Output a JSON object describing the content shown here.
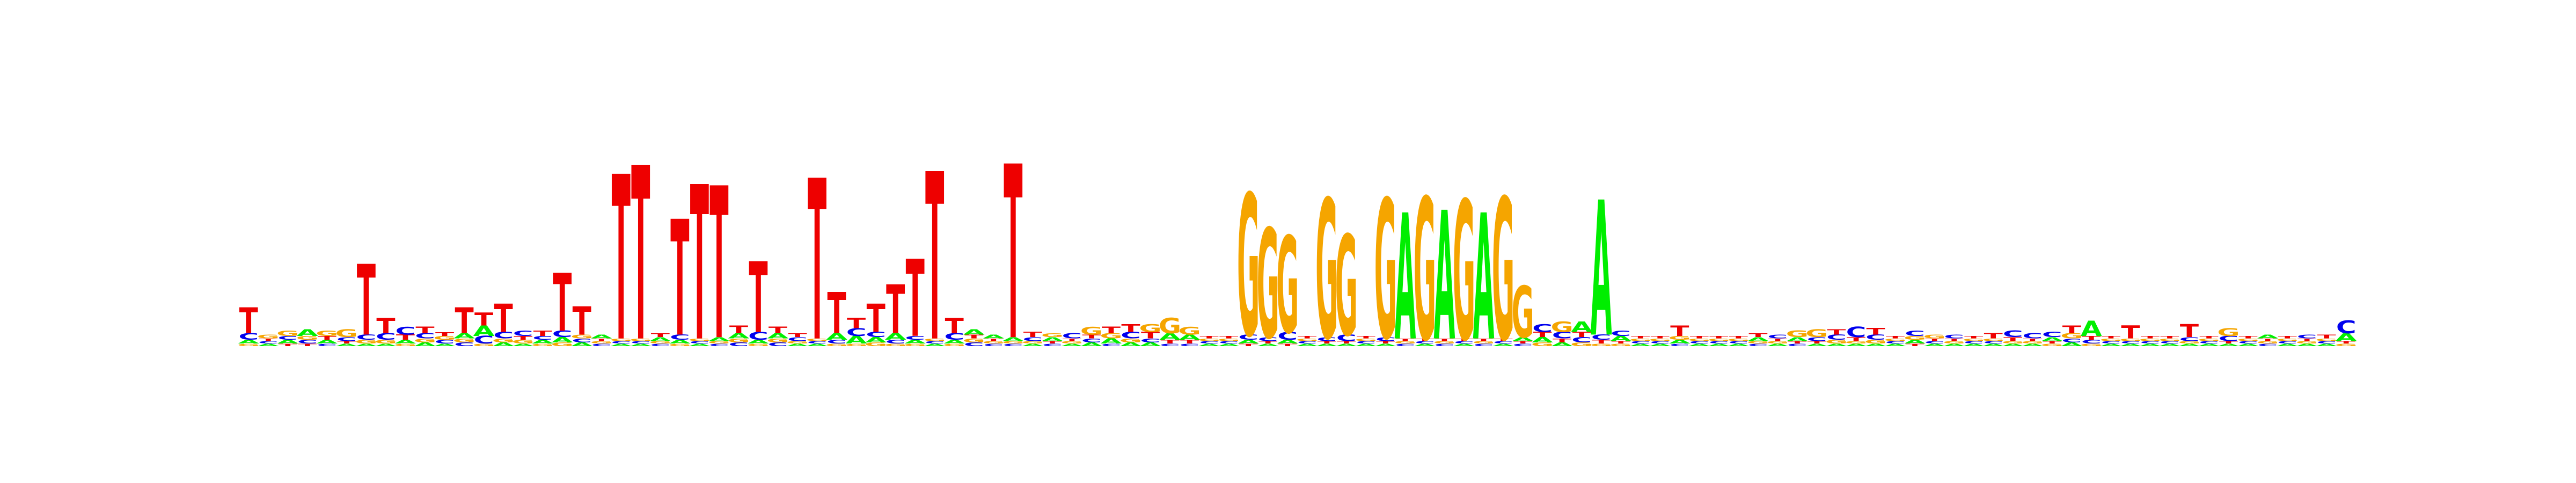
{
  "logo": {
    "alphabet": [
      "A",
      "C",
      "G",
      "T"
    ],
    "colors": {
      "A": "#00ee00",
      "C": "#0000ee",
      "G": "#f5a500",
      "T": "#ee0000"
    },
    "max_bits": 2,
    "columns": [
      {
        "A": 0.03,
        "C": 0.05,
        "G": 0.02,
        "T": 0.2
      },
      {
        "A": 0.02,
        "C": 0.02,
        "G": 0.03,
        "T": 0.02
      },
      {
        "A": 0.03,
        "C": 0.03,
        "G": 0.04,
        "T": 0.02
      },
      {
        "A": 0.05,
        "C": 0.03,
        "G": 0.03,
        "T": 0.02
      },
      {
        "A": 0.03,
        "C": 0.02,
        "G": 0.04,
        "T": 0.03
      },
      {
        "A": 0.02,
        "C": 0.03,
        "G": 0.06,
        "T": 0.02
      },
      {
        "A": 0.02,
        "C": 0.04,
        "G": 0.03,
        "T": 0.55
      },
      {
        "A": 0.02,
        "C": 0.05,
        "G": 0.03,
        "T": 0.12
      },
      {
        "A": 0.03,
        "C": 0.06,
        "G": 0.02,
        "T": 0.04
      },
      {
        "A": 0.03,
        "C": 0.04,
        "G": 0.03,
        "T": 0.05
      },
      {
        "A": 0.02,
        "C": 0.03,
        "G": 0.03,
        "T": 0.03
      },
      {
        "A": 0.04,
        "C": 0.03,
        "G": 0.03,
        "T": 0.2
      },
      {
        "A": 0.08,
        "C": 0.06,
        "G": 0.02,
        "T": 0.1
      },
      {
        "A": 0.03,
        "C": 0.05,
        "G": 0.03,
        "T": 0.22
      },
      {
        "A": 0.02,
        "C": 0.04,
        "G": 0.03,
        "T": 0.03
      },
      {
        "A": 0.03,
        "C": 0.03,
        "G": 0.02,
        "T": 0.04
      },
      {
        "A": 0.04,
        "C": 0.05,
        "G": 0.03,
        "T": 0.45
      },
      {
        "A": 0.03,
        "C": 0.03,
        "G": 0.03,
        "T": 0.22
      },
      {
        "A": 0.03,
        "C": 0.02,
        "G": 0.02,
        "T": 0.02
      },
      {
        "A": 0.02,
        "C": 0.02,
        "G": 0.02,
        "T": 1.28
      },
      {
        "A": 0.02,
        "C": 0.02,
        "G": 0.02,
        "T": 1.35
      },
      {
        "A": 0.03,
        "C": 0.02,
        "G": 0.02,
        "T": 0.03
      },
      {
        "A": 0.03,
        "C": 0.04,
        "G": 0.02,
        "T": 0.9
      },
      {
        "A": 0.02,
        "C": 0.02,
        "G": 0.02,
        "T": 1.2
      },
      {
        "A": 0.03,
        "C": 0.02,
        "G": 0.02,
        "T": 1.18
      },
      {
        "A": 0.04,
        "C": 0.03,
        "G": 0.03,
        "T": 0.06
      },
      {
        "A": 0.03,
        "C": 0.06,
        "G": 0.02,
        "T": 0.55
      },
      {
        "A": 0.04,
        "C": 0.03,
        "G": 0.03,
        "T": 0.05
      },
      {
        "A": 0.02,
        "C": 0.03,
        "G": 0.02,
        "T": 0.03
      },
      {
        "A": 0.02,
        "C": 0.02,
        "G": 0.02,
        "T": 1.25
      },
      {
        "A": 0.05,
        "C": 0.03,
        "G": 0.02,
        "T": 0.32
      },
      {
        "A": 0.06,
        "C": 0.06,
        "G": 0.02,
        "T": 0.08
      },
      {
        "A": 0.04,
        "C": 0.04,
        "G": 0.03,
        "T": 0.22
      },
      {
        "A": 0.05,
        "C": 0.03,
        "G": 0.02,
        "T": 0.38
      },
      {
        "A": 0.03,
        "C": 0.03,
        "G": 0.02,
        "T": 0.6
      },
      {
        "A": 0.02,
        "C": 0.02,
        "G": 0.02,
        "T": 1.3
      },
      {
        "A": 0.03,
        "C": 0.05,
        "G": 0.02,
        "T": 0.12
      },
      {
        "A": 0.04,
        "C": 0.03,
        "G": 0.03,
        "T": 0.03
      },
      {
        "A": 0.03,
        "C": 0.02,
        "G": 0.02,
        "T": 0.02
      },
      {
        "A": 0.03,
        "C": 0.02,
        "G": 0.02,
        "T": 1.35
      },
      {
        "A": 0.02,
        "C": 0.02,
        "G": 0.03,
        "T": 0.02
      },
      {
        "A": 0.04,
        "C": 0.03,
        "G": 0.03,
        "T": 0.03
      },
      {
        "A": 0.03,
        "C": 0.03,
        "G": 0.04,
        "T": 0.03
      },
      {
        "A": 0.05,
        "C": 0.04,
        "G": 0.03,
        "T": 0.06
      },
      {
        "A": 0.03,
        "C": 0.05,
        "G": 0.04,
        "T": 0.03
      },
      {
        "A": 0.04,
        "C": 0.04,
        "G": 0.06,
        "T": 0.03
      },
      {
        "A": 0.02,
        "C": 0.03,
        "G": 0.03,
        "T": 0.05
      },
      {
        "A": 0.03,
        "C": 0.02,
        "G": 0.04,
        "T": 0.02
      },
      {
        "A": 0.02,
        "C": 0.04,
        "G": 0.02,
        "T": 0.03
      },
      {
        "A": 0.02,
        "C": 0.03,
        "G": 0.03,
        "T": 0.02
      },
      {
        "A": 0.03,
        "C": 0.02,
        "G": 0.02,
        "T": 0.03
      },
      {
        "A": 0.02,
        "C": 0.03,
        "G": 0.02,
        "T": 0.02
      },
      {
        "A": 0.03,
        "C": 0.02,
        "G": 0.03,
        "T": 0.02
      },
      {
        "A": 0.02,
        "C": 0.02,
        "G": 0.02,
        "T": 0.03
      },
      {
        "A": 0.03,
        "C": 0.03,
        "G": 0.02,
        "T": 0.02
      },
      {
        "A": 0.02,
        "C": 0.02,
        "G": 0.02,
        "T": 0.02
      },
      {
        "A": 0.02,
        "C": 0.02,
        "G": 0.02,
        "T": 0.02
      },
      {
        "A": 0.02,
        "C": 0.02,
        "G": 0.02,
        "T": 0.02
      },
      {
        "A": 0.02,
        "C": 0.02,
        "G": 0.02,
        "T": 0.02
      },
      {
        "A": 0.02,
        "C": 0.02,
        "G": 0.02,
        "T": 0.02
      },
      {
        "A": 0.02,
        "C": 0.02,
        "G": 0.02,
        "T": 0.02
      },
      {
        "A": 0.02,
        "C": 0.02,
        "G": 0.02,
        "T": 0.02
      },
      {
        "A": 0.02,
        "C": 0.02,
        "G": 0.02,
        "T": 0.02
      },
      {
        "A": 0.02,
        "C": 0.02,
        "G": 0.02,
        "T": 0.02
      },
      {
        "A": 0.02,
        "C": 0.02,
        "G": 0.02,
        "T": 0.02
      },
      {
        "A": 0.02,
        "C": 0.02,
        "G": 0.02,
        "T": 0.02
      },
      {
        "A": 0.02,
        "C": 0.02,
        "G": 0.02,
        "T": 0.02
      },
      {
        "A": 0.02,
        "C": 0.02,
        "G": 0.02,
        "T": 0.02
      },
      {
        "A": 0.02,
        "C": 0.02,
        "G": 0.02,
        "T": 0.02
      },
      {
        "A": 0.02,
        "C": 0.02,
        "G": 0.02,
        "T": 0.02
      },
      {
        "A": 0.02,
        "C": 0.02,
        "G": 0.02,
        "T": 0.02
      },
      {
        "A": 0.02,
        "C": 0.02,
        "G": 0.02,
        "T": 0.02
      },
      {
        "A": 0.02,
        "C": 0.02,
        "G": 0.02,
        "T": 0.02
      },
      {
        "A": 0.02,
        "C": 0.02,
        "G": 0.02,
        "T": 0.02
      },
      {
        "A": 0.02,
        "C": 0.02,
        "G": 0.02,
        "T": 0.02
      },
      {
        "A": 0.02,
        "C": 0.02,
        "G": 0.02,
        "T": 0.02
      }
    ],
    "motif_columns": [
      {
        "A": 0.02,
        "C": 0.03,
        "G": 0.02,
        "T": 0.04
      },
      {
        "A": 0.03,
        "C": 0.02,
        "G": 0.03,
        "T": 0.02
      },
      {
        "A": 0.02,
        "C": 0.04,
        "G": 0.02,
        "T": 0.02
      },
      {
        "A": 0.03,
        "C": 0.03,
        "G": 0.06,
        "T": 0.03
      },
      {
        "A": 0.04,
        "C": 0.02,
        "G": 0.04,
        "T": 0.05
      },
      {
        "A": 0.03,
        "C": 0.05,
        "G": 0.03,
        "T": 0.06
      },
      {
        "A": 0.03,
        "C": 0.03,
        "G": 0.06,
        "T": 0.05
      },
      {
        "A": 0.05,
        "C": 0.02,
        "G": 0.12,
        "T": 0.03
      },
      {
        "A": 0.04,
        "C": 0.02,
        "G": 0.06,
        "T": 0.03
      },
      {
        "A": 0.02,
        "C": 0.02,
        "G": 0.02,
        "T": 0.02
      },
      {
        "A": 0.02,
        "C": 0.02,
        "G": 0.02,
        "T": 0.02
      },
      {
        "A": 0.03,
        "C": 0.04,
        "G": 1.1,
        "T": 0.02
      },
      {
        "A": 0.02,
        "C": 0.03,
        "G": 0.85,
        "T": 0.02
      },
      {
        "A": 0.03,
        "C": 0.06,
        "G": 0.75,
        "T": 0.02
      },
      {
        "A": 0.02,
        "C": 0.02,
        "G": 0.02,
        "T": 0.02
      },
      {
        "A": 0.02,
        "C": 0.03,
        "G": 1.08,
        "T": 0.02
      },
      {
        "A": 0.02,
        "C": 0.05,
        "G": 0.78,
        "T": 0.02
      },
      {
        "A": 0.02,
        "C": 0.02,
        "G": 0.02,
        "T": 0.02
      },
      {
        "A": 0.02,
        "C": 0.03,
        "G": 1.08,
        "T": 0.02
      },
      {
        "A": 0.98,
        "C": 0.02,
        "G": 0.02,
        "T": 0.02
      },
      {
        "A": 0.02,
        "C": 0.02,
        "G": 1.1,
        "T": 0.02
      },
      {
        "A": 1.0,
        "C": 0.02,
        "G": 0.02,
        "T": 0.02
      },
      {
        "A": 0.02,
        "C": 0.02,
        "G": 1.08,
        "T": 0.02
      },
      {
        "A": 0.98,
        "C": 0.02,
        "G": 0.02,
        "T": 0.02
      },
      {
        "A": 0.02,
        "C": 0.02,
        "G": 1.1,
        "T": 0.02
      },
      {
        "A": 0.03,
        "C": 0.02,
        "G": 0.4,
        "T": 0.02
      },
      {
        "A": 0.04,
        "C": 0.06,
        "G": 0.03,
        "T": 0.04
      },
      {
        "A": 0.03,
        "C": 0.05,
        "G": 0.08,
        "T": 0.03
      },
      {
        "A": 0.08,
        "C": 0.04,
        "G": 0.03,
        "T": 0.04
      },
      {
        "A": 1.05,
        "C": 0.04,
        "G": 0.02,
        "T": 0.03
      },
      {
        "A": 0.04,
        "C": 0.04,
        "G": 0.02,
        "T": 0.02
      }
    ],
    "tail_columns": [
      {
        "A": 0.02,
        "C": 0.02,
        "G": 0.02,
        "T": 0.02
      },
      {
        "A": 0.02,
        "C": 0.02,
        "G": 0.02,
        "T": 0.02
      },
      {
        "A": 0.03,
        "C": 0.02,
        "G": 0.03,
        "T": 0.08
      },
      {
        "A": 0.02,
        "C": 0.02,
        "G": 0.02,
        "T": 0.02
      },
      {
        "A": 0.02,
        "C": 0.02,
        "G": 0.02,
        "T": 0.02
      },
      {
        "A": 0.02,
        "C": 0.02,
        "G": 0.02,
        "T": 0.02
      },
      {
        "A": 0.03,
        "C": 0.02,
        "G": 0.02,
        "T": 0.03
      },
      {
        "A": 0.02,
        "C": 0.03,
        "G": 0.02,
        "T": 0.02
      },
      {
        "A": 0.03,
        "C": 0.02,
        "G": 0.05,
        "T": 0.02
      },
      {
        "A": 0.02,
        "C": 0.03,
        "G": 0.06,
        "T": 0.02
      },
      {
        "A": 0.02,
        "C": 0.04,
        "G": 0.03,
        "T": 0.04
      },
      {
        "A": 0.02,
        "C": 0.08,
        "G": 0.02,
        "T": 0.03
      },
      {
        "A": 0.02,
        "C": 0.04,
        "G": 0.03,
        "T": 0.05
      },
      {
        "A": 0.02,
        "C": 0.02,
        "G": 0.02,
        "T": 0.02
      },
      {
        "A": 0.03,
        "C": 0.04,
        "G": 0.03,
        "T": 0.02
      },
      {
        "A": 0.02,
        "C": 0.02,
        "G": 0.03,
        "T": 0.02
      },
      {
        "A": 0.02,
        "C": 0.03,
        "G": 0.02,
        "T": 0.02
      },
      {
        "A": 0.02,
        "C": 0.02,
        "G": 0.02,
        "T": 0.02
      },
      {
        "A": 0.02,
        "C": 0.02,
        "G": 0.02,
        "T": 0.04
      },
      {
        "A": 0.02,
        "C": 0.05,
        "G": 0.02,
        "T": 0.03
      },
      {
        "A": 0.02,
        "C": 0.04,
        "G": 0.02,
        "T": 0.02
      },
      {
        "A": 0.03,
        "C": 0.04,
        "G": 0.02,
        "T": 0.02
      },
      {
        "A": 0.03,
        "C": 0.03,
        "G": 0.04,
        "T": 0.06
      },
      {
        "A": 0.12,
        "C": 0.03,
        "G": 0.02,
        "T": 0.03
      },
      {
        "A": 0.02,
        "C": 0.02,
        "G": 0.02,
        "T": 0.02
      },
      {
        "A": 0.02,
        "C": 0.02,
        "G": 0.02,
        "T": 0.1
      },
      {
        "A": 0.02,
        "C": 0.02,
        "G": 0.02,
        "T": 0.02
      },
      {
        "A": 0.02,
        "C": 0.02,
        "G": 0.02,
        "T": 0.02
      },
      {
        "A": 0.02,
        "C": 0.03,
        "G": 0.02,
        "T": 0.1
      },
      {
        "A": 0.02,
        "C": 0.02,
        "G": 0.02,
        "T": 0.02
      },
      {
        "A": 0.02,
        "C": 0.04,
        "G": 0.06,
        "T": 0.02
      },
      {
        "A": 0.02,
        "C": 0.02,
        "G": 0.02,
        "T": 0.02
      },
      {
        "A": 0.03,
        "C": 0.02,
        "G": 0.02,
        "T": 0.02
      },
      {
        "A": 0.02,
        "C": 0.02,
        "G": 0.02,
        "T": 0.02
      },
      {
        "A": 0.02,
        "C": 0.03,
        "G": 0.02,
        "T": 0.02
      },
      {
        "A": 0.02,
        "C": 0.02,
        "G": 0.02,
        "T": 0.03
      },
      {
        "A": 0.06,
        "C": 0.1,
        "G": 0.02,
        "T": 0.02
      }
    ]
  }
}
